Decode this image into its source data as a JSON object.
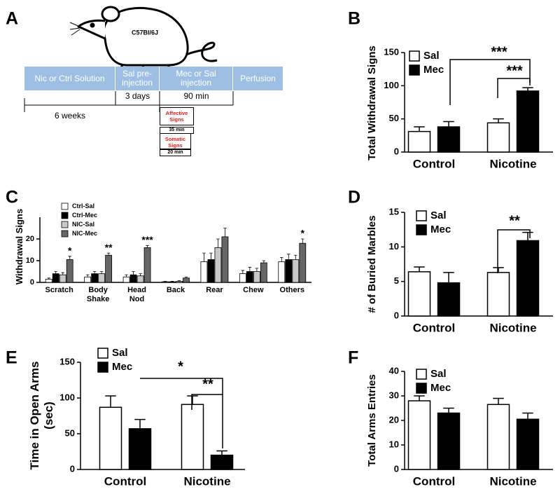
{
  "panel_labels": [
    "A",
    "B",
    "C",
    "D",
    "E",
    "F"
  ],
  "timeline": {
    "mouse_label": "C57Bl/6J",
    "phases": [
      "Nic or Ctrl Solution",
      "Sal pre-injection",
      "Mec or Sal injection",
      "Perfusion"
    ],
    "durations": [
      "6 weeks",
      "3 days",
      "90 min"
    ],
    "boxes": [
      {
        "title": "Affective Signs",
        "duration": "35 min"
      },
      {
        "title": "Somatic Signs",
        "duration": "20 min"
      }
    ]
  },
  "chart_data": [
    {
      "type": "bar",
      "ylabel": "Total Withdrawal Signs",
      "categories": [
        "Control",
        "Nicotine"
      ],
      "series": [
        {
          "name": "Sal",
          "color": "#ffffff",
          "values": [
            31,
            44
          ],
          "errors": [
            7,
            6
          ]
        },
        {
          "name": "Mec",
          "color": "#000000",
          "values": [
            38,
            92
          ],
          "errors": [
            8,
            5
          ]
        }
      ],
      "ylim": [
        0,
        150
      ],
      "yticks": [
        0,
        50,
        100,
        150
      ],
      "annotations": [
        "***",
        "***"
      ]
    },
    {
      "type": "bar",
      "ylabel": "Withdrawal Signs",
      "categories": [
        "Scratch",
        "Body Shake",
        "Head Nod",
        "Back",
        "Rear",
        "Chew",
        "Others"
      ],
      "series": [
        {
          "name": "Ctrl-Sal",
          "color": "#ffffff",
          "values": [
            1.5,
            2.5,
            2.5,
            0.3,
            9.5,
            4,
            9.5
          ],
          "errors": [
            0.5,
            1,
            1,
            0.2,
            4,
            1.5,
            2
          ]
        },
        {
          "name": "Ctrl-Mec",
          "color": "#000000",
          "values": [
            4,
            4,
            3.5,
            0.3,
            10.5,
            5,
            10.5
          ],
          "errors": [
            1,
            1,
            1.5,
            0.2,
            3,
            2,
            2.5
          ]
        },
        {
          "name": "NIC-Sal",
          "color": "#c8c8c8",
          "values": [
            3.5,
            4,
            3,
            0.5,
            16,
            5,
            10.5
          ],
          "errors": [
            1,
            1,
            1,
            0.3,
            4,
            1.5,
            2
          ]
        },
        {
          "name": "NIC-Mec",
          "color": "#666666",
          "values": [
            10.5,
            12.5,
            16,
            2,
            21,
            9,
            18
          ],
          "errors": [
            1.5,
            1,
            1,
            0.5,
            4,
            1,
            2
          ]
        }
      ],
      "ylim": [
        0,
        30
      ],
      "yticks": [
        0,
        10,
        20
      ],
      "annotations": [
        "*",
        "**",
        "***",
        "*"
      ]
    },
    {
      "type": "bar",
      "ylabel": "# of Buried Marbles",
      "categories": [
        "Control",
        "Nicotine"
      ],
      "series": [
        {
          "name": "Sal",
          "color": "#ffffff",
          "values": [
            6.4,
            6.3
          ],
          "errors": [
            0.7,
            0.7
          ]
        },
        {
          "name": "Mec",
          "color": "#000000",
          "values": [
            4.8,
            10.9
          ],
          "errors": [
            1.5,
            1.2
          ]
        }
      ],
      "ylim": [
        0,
        15
      ],
      "yticks": [
        0,
        5,
        10,
        15
      ],
      "annotations": [
        "**"
      ]
    },
    {
      "type": "bar",
      "ylabel": "Time in Open Arms (sec)",
      "categories": [
        "Control",
        "Nicotine"
      ],
      "series": [
        {
          "name": "Sal",
          "color": "#ffffff",
          "values": [
            87,
            91
          ],
          "errors": [
            16,
            12
          ]
        },
        {
          "name": "Mec",
          "color": "#000000",
          "values": [
            57,
            20
          ],
          "errors": [
            13,
            6
          ]
        }
      ],
      "ylim": [
        0,
        150
      ],
      "yticks": [
        0,
        50,
        100,
        150
      ],
      "annotations": [
        "*",
        "**"
      ]
    },
    {
      "type": "bar",
      "ylabel": "Total Arms Entries",
      "categories": [
        "Control",
        "Nicotine"
      ],
      "series": [
        {
          "name": "Sal",
          "color": "#ffffff",
          "values": [
            28,
            26.5
          ],
          "errors": [
            2,
            2.5
          ]
        },
        {
          "name": "Mec",
          "color": "#000000",
          "values": [
            23,
            20.5
          ],
          "errors": [
            2,
            2.5
          ]
        }
      ],
      "ylim": [
        0,
        40
      ],
      "yticks": [
        0,
        10,
        20,
        30,
        40
      ]
    }
  ]
}
